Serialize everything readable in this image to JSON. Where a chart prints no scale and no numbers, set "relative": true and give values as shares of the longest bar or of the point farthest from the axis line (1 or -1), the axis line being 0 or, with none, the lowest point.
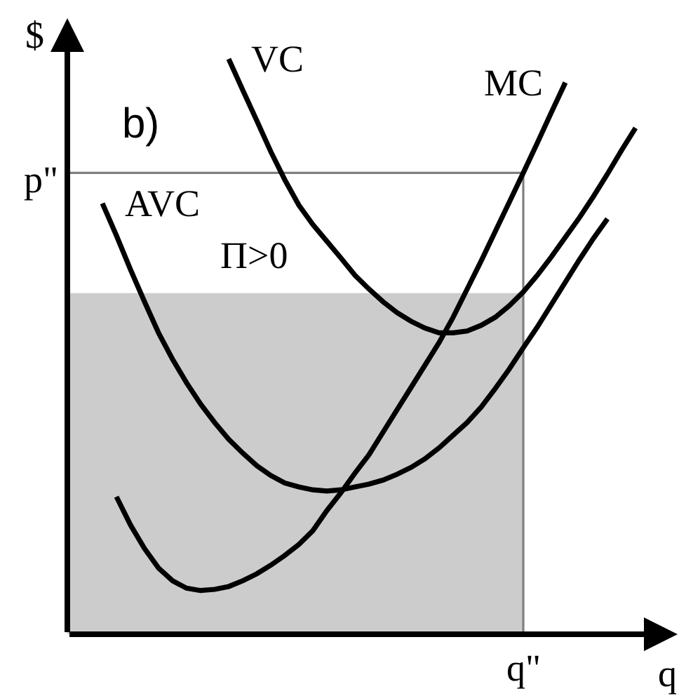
{
  "chart_data": {
    "type": "line",
    "relative": true,
    "xlabel": "q",
    "ylabel": "$",
    "categories": [
      null,
      null,
      null,
      null,
      null,
      null,
      null,
      null,
      null,
      null,
      null,
      null,
      null,
      null,
      null,
      null,
      null,
      null,
      null,
      null,
      null,
      null,
      null,
      null,
      null,
      null,
      null,
      null,
      null,
      null,
      null,
      null,
      null,
      null,
      null,
      null,
      null,
      null,
      null,
      null,
      null,
      null,
      null
    ],
    "series": [
      {
        "name": "VC",
        "color": "#000000",
        "values": [
          null,
          null,
          null,
          null,
          null,
          null,
          null,
          null,
          null,
          null,
          null,
          1.0,
          0.946,
          0.893,
          0.839,
          0.79,
          0.746,
          0.712,
          0.683,
          0.654,
          0.624,
          0.6,
          0.578,
          0.559,
          0.544,
          0.532,
          0.524,
          0.524,
          0.527,
          0.537,
          0.551,
          0.571,
          0.595,
          0.624,
          0.656,
          0.69,
          0.724,
          0.761,
          0.8,
          0.841,
          0.88,
          null,
          null
        ]
      },
      {
        "name": "MC",
        "color": "#000000",
        "values": [
          null,
          null,
          null,
          0.239,
          0.19,
          0.149,
          0.115,
          0.093,
          0.08,
          0.076,
          0.078,
          0.083,
          0.093,
          0.105,
          0.12,
          0.137,
          0.156,
          0.18,
          0.215,
          0.246,
          0.28,
          0.312,
          0.351,
          0.39,
          0.429,
          0.468,
          0.507,
          0.551,
          0.6,
          0.649,
          0.7,
          0.751,
          0.802,
          0.854,
          0.907,
          0.959,
          null,
          null,
          null,
          null,
          null,
          null,
          null
        ]
      },
      {
        "name": "AVC",
        "color": "#000000",
        "values": [
          null,
          null,
          0.749,
          0.693,
          0.634,
          0.578,
          0.524,
          0.478,
          0.437,
          0.4,
          0.368,
          0.339,
          0.315,
          0.293,
          0.276,
          0.263,
          0.256,
          0.251,
          0.249,
          0.251,
          0.256,
          0.261,
          0.268,
          0.278,
          0.29,
          0.305,
          0.324,
          0.346,
          0.368,
          0.395,
          0.427,
          0.461,
          0.498,
          0.534,
          0.573,
          0.612,
          0.651,
          0.688,
          0.722,
          null,
          null,
          null,
          null
        ]
      }
    ],
    "ref_lines": [
      {
        "axis": "y",
        "value": 0.802,
        "label": "p\"",
        "color": "#808080"
      }
    ],
    "bands": [
      {
        "axis": "y",
        "from": 0,
        "to": 0.593,
        "color": "#cccccc"
      }
    ],
    "annotations": [
      "b)",
      "Π>0",
      "q\""
    ]
  }
}
